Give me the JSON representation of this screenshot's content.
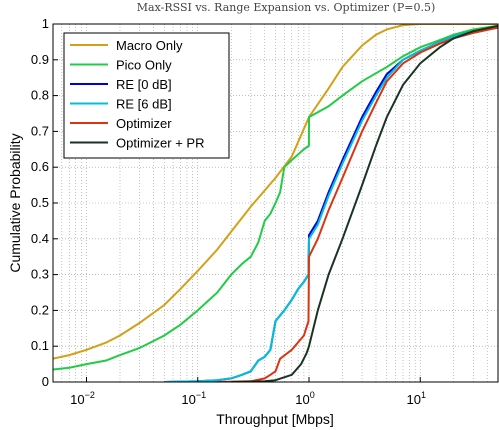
{
  "chart_data": {
    "type": "line",
    "title": "Max-RSSI vs. Range Expansion vs. Optimizer (P=0.5)",
    "xlabel": "Throughput [Mbps]",
    "ylabel": "Cumulative Probability",
    "xscale": "log",
    "xlim": [
      0.005,
      50
    ],
    "ylim": [
      0,
      1
    ],
    "grid": true,
    "legend_position": "top-left",
    "x_ticks": [
      {
        "label": "10^-2",
        "base": "10",
        "exp": "−2",
        "value": 0.01
      },
      {
        "label": "10^-1",
        "base": "10",
        "exp": "−1",
        "value": 0.1
      },
      {
        "label": "10^0",
        "base": "10",
        "exp": "0",
        "value": 1
      },
      {
        "label": "10^1",
        "base": "10",
        "exp": "1",
        "value": 10
      }
    ],
    "y_ticks": [
      "0",
      "0.1",
      "0.2",
      "0.3",
      "0.4",
      "0.5",
      "0.6",
      "0.7",
      "0.8",
      "0.9",
      "1"
    ],
    "series": [
      {
        "name": "Macro Only",
        "color": "#D4A017",
        "points": [
          [
            0.005,
            0.065
          ],
          [
            0.007,
            0.075
          ],
          [
            0.01,
            0.09
          ],
          [
            0.015,
            0.11
          ],
          [
            0.02,
            0.13
          ],
          [
            0.03,
            0.165
          ],
          [
            0.05,
            0.215
          ],
          [
            0.07,
            0.26
          ],
          [
            0.1,
            0.31
          ],
          [
            0.15,
            0.37
          ],
          [
            0.2,
            0.42
          ],
          [
            0.3,
            0.49
          ],
          [
            0.5,
            0.57
          ],
          [
            0.7,
            0.63
          ],
          [
            1.0,
            0.74
          ],
          [
            1.5,
            0.82
          ],
          [
            2.0,
            0.88
          ],
          [
            3.0,
            0.94
          ],
          [
            4.0,
            0.97
          ],
          [
            5.0,
            0.985
          ],
          [
            7.0,
            0.997
          ],
          [
            10,
            1.0
          ],
          [
            50,
            1.0
          ]
        ]
      },
      {
        "name": "Pico Only",
        "color": "#22CC44",
        "points": [
          [
            0.005,
            0.035
          ],
          [
            0.007,
            0.04
          ],
          [
            0.01,
            0.05
          ],
          [
            0.015,
            0.06
          ],
          [
            0.02,
            0.075
          ],
          [
            0.03,
            0.095
          ],
          [
            0.05,
            0.13
          ],
          [
            0.07,
            0.16
          ],
          [
            0.1,
            0.2
          ],
          [
            0.15,
            0.25
          ],
          [
            0.2,
            0.3
          ],
          [
            0.25,
            0.33
          ],
          [
            0.3,
            0.35
          ],
          [
            0.35,
            0.39
          ],
          [
            0.4,
            0.45
          ],
          [
            0.45,
            0.47
          ],
          [
            0.5,
            0.5
          ],
          [
            0.55,
            0.53
          ],
          [
            0.6,
            0.6
          ],
          [
            0.7,
            0.62
          ],
          [
            0.9,
            0.65
          ],
          [
            0.999,
            0.66
          ],
          [
            1.0,
            0.74
          ],
          [
            1.5,
            0.77
          ],
          [
            2.0,
            0.8
          ],
          [
            3.0,
            0.84
          ],
          [
            5.0,
            0.88
          ],
          [
            7.0,
            0.91
          ],
          [
            10,
            0.935
          ],
          [
            15,
            0.955
          ],
          [
            20,
            0.97
          ],
          [
            30,
            0.985
          ],
          [
            50,
            0.995
          ]
        ]
      },
      {
        "name": "RE [0 dB]",
        "color": "#0000DD",
        "points": [
          [
            0.05,
            0.0
          ],
          [
            0.1,
            0.002
          ],
          [
            0.15,
            0.005
          ],
          [
            0.2,
            0.01
          ],
          [
            0.25,
            0.02
          ],
          [
            0.3,
            0.03
          ],
          [
            0.35,
            0.06
          ],
          [
            0.4,
            0.07
          ],
          [
            0.45,
            0.09
          ],
          [
            0.5,
            0.17
          ],
          [
            0.6,
            0.2
          ],
          [
            0.7,
            0.23
          ],
          [
            0.8,
            0.26
          ],
          [
            0.9,
            0.28
          ],
          [
            0.99,
            0.3
          ],
          [
            1.0,
            0.41
          ],
          [
            1.2,
            0.45
          ],
          [
            1.5,
            0.53
          ],
          [
            2.0,
            0.62
          ],
          [
            3.0,
            0.74
          ],
          [
            4.0,
            0.81
          ],
          [
            5.0,
            0.86
          ],
          [
            7.0,
            0.9
          ],
          [
            10,
            0.925
          ],
          [
            15,
            0.95
          ],
          [
            20,
            0.965
          ],
          [
            30,
            0.98
          ],
          [
            50,
            0.99
          ]
        ]
      },
      {
        "name": "RE [6 dB]",
        "color": "#00C0D8",
        "points": [
          [
            0.05,
            0.0
          ],
          [
            0.1,
            0.002
          ],
          [
            0.15,
            0.005
          ],
          [
            0.2,
            0.01
          ],
          [
            0.25,
            0.02
          ],
          [
            0.3,
            0.03
          ],
          [
            0.35,
            0.06
          ],
          [
            0.4,
            0.07
          ],
          [
            0.45,
            0.09
          ],
          [
            0.5,
            0.17
          ],
          [
            0.6,
            0.2
          ],
          [
            0.7,
            0.23
          ],
          [
            0.8,
            0.26
          ],
          [
            0.9,
            0.28
          ],
          [
            0.99,
            0.3
          ],
          [
            1.0,
            0.4
          ],
          [
            1.2,
            0.44
          ],
          [
            1.5,
            0.52
          ],
          [
            2.0,
            0.61
          ],
          [
            3.0,
            0.73
          ],
          [
            4.0,
            0.8
          ],
          [
            5.0,
            0.85
          ],
          [
            7.0,
            0.9
          ],
          [
            10,
            0.925
          ],
          [
            15,
            0.95
          ],
          [
            20,
            0.965
          ],
          [
            30,
            0.98
          ],
          [
            50,
            0.99
          ]
        ]
      },
      {
        "name": "Optimizer",
        "color": "#DD3311",
        "points": [
          [
            0.15,
            0.0
          ],
          [
            0.3,
            0.002
          ],
          [
            0.4,
            0.01
          ],
          [
            0.45,
            0.02
          ],
          [
            0.5,
            0.03
          ],
          [
            0.55,
            0.065
          ],
          [
            0.7,
            0.09
          ],
          [
            0.9,
            0.13
          ],
          [
            0.99,
            0.17
          ],
          [
            1.0,
            0.35
          ],
          [
            1.2,
            0.4
          ],
          [
            1.5,
            0.48
          ],
          [
            2.0,
            0.57
          ],
          [
            3.0,
            0.7
          ],
          [
            4.0,
            0.78
          ],
          [
            5.0,
            0.84
          ],
          [
            7.0,
            0.89
          ],
          [
            10,
            0.92
          ],
          [
            15,
            0.945
          ],
          [
            20,
            0.96
          ],
          [
            30,
            0.975
          ],
          [
            50,
            0.99
          ]
        ]
      },
      {
        "name": "Optimizer + PR",
        "color": "#1A3322",
        "points": [
          [
            0.2,
            0.0
          ],
          [
            0.4,
            0.002
          ],
          [
            0.5,
            0.005
          ],
          [
            0.7,
            0.02
          ],
          [
            0.85,
            0.05
          ],
          [
            0.95,
            0.08
          ],
          [
            1.0,
            0.1
          ],
          [
            1.2,
            0.2
          ],
          [
            1.5,
            0.3
          ],
          [
            2.0,
            0.4
          ],
          [
            3.0,
            0.55
          ],
          [
            4.0,
            0.66
          ],
          [
            5.0,
            0.74
          ],
          [
            7.0,
            0.83
          ],
          [
            10,
            0.89
          ],
          [
            15,
            0.935
          ],
          [
            20,
            0.96
          ],
          [
            30,
            0.98
          ],
          [
            50,
            0.995
          ]
        ]
      }
    ]
  }
}
